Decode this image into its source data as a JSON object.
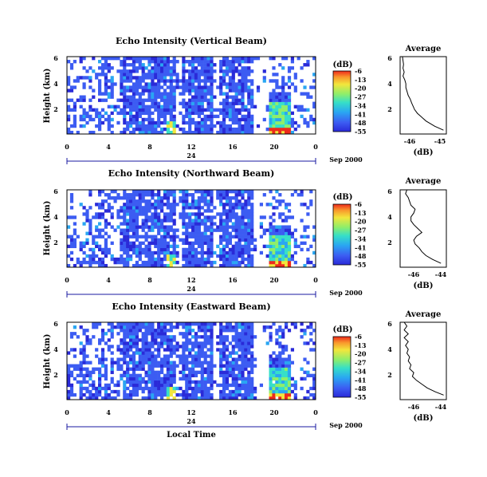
{
  "figure": {
    "xlabel": "Local Time",
    "date_label": "Sep 2000",
    "colorbar_unit": "(dB)",
    "average_title": "Average",
    "average_xlabel": "(dB)"
  },
  "chart_data": [
    {
      "type": "heatmap",
      "title": "Echo Intensity (Vertical Beam)",
      "ylabel": "Height (km)",
      "x_ticks": [
        "0",
        "4",
        "8",
        "12",
        "16",
        "20",
        "0"
      ],
      "date_ticks": [
        "24"
      ],
      "y_ticks": [
        "6",
        "4",
        "2"
      ],
      "xlim": [
        0,
        24
      ],
      "ylim": [
        0,
        6
      ],
      "colorbar": {
        "ticks": [
          -6,
          -13,
          -20,
          -27,
          -34,
          -41,
          -48,
          -55
        ],
        "range": [
          -55,
          -6
        ]
      },
      "profile": {
        "title": "Average",
        "xlabel": "(dB)",
        "x_ticks": [
          "-46",
          "-45"
        ],
        "xlim": [
          -46.3,
          -44.7
        ],
        "ylim": [
          0,
          6
        ],
        "y_ticks": [
          "6",
          "4",
          "2"
        ],
        "points": [
          [
            -46.22,
            6.0
          ],
          [
            -46.2,
            5.7
          ],
          [
            -46.18,
            5.4
          ],
          [
            -46.2,
            5.1
          ],
          [
            -46.16,
            4.8
          ],
          [
            -46.2,
            4.5
          ],
          [
            -46.14,
            4.2
          ],
          [
            -46.1,
            3.9
          ],
          [
            -46.1,
            3.6
          ],
          [
            -46.06,
            3.3
          ],
          [
            -46.02,
            3.0
          ],
          [
            -45.95,
            2.7
          ],
          [
            -45.9,
            2.4
          ],
          [
            -45.84,
            2.1
          ],
          [
            -45.8,
            1.9
          ],
          [
            -45.7,
            1.6
          ],
          [
            -45.6,
            1.4
          ],
          [
            -45.5,
            1.2
          ],
          [
            -45.4,
            1.0
          ],
          [
            -45.25,
            0.8
          ],
          [
            -45.1,
            0.6
          ],
          [
            -44.95,
            0.45
          ],
          [
            -44.8,
            0.3
          ]
        ]
      }
    },
    {
      "type": "heatmap",
      "title": "Echo Intensity (Northward Beam)",
      "ylabel": "Height (km)",
      "x_ticks": [
        "0",
        "4",
        "8",
        "12",
        "16",
        "20",
        "0"
      ],
      "date_ticks": [
        "24"
      ],
      "y_ticks": [
        "6",
        "4",
        "2"
      ],
      "xlim": [
        0,
        24
      ],
      "ylim": [
        0,
        6
      ],
      "colorbar": {
        "ticks": [
          -6,
          -13,
          -20,
          -27,
          -34,
          -41,
          -48,
          -55
        ],
        "range": [
          -55,
          -6
        ]
      },
      "profile": {
        "title": "Average",
        "xlabel": "(dB)",
        "x_ticks": [
          "-46",
          "-44"
        ],
        "xlim": [
          -46.6,
          -43.2
        ],
        "ylim": [
          0,
          6
        ],
        "y_ticks": [
          "6",
          "4",
          "2"
        ],
        "points": [
          [
            -46.1,
            6.0
          ],
          [
            -46.2,
            5.7
          ],
          [
            -46.0,
            5.4
          ],
          [
            -45.9,
            5.1
          ],
          [
            -45.8,
            4.8
          ],
          [
            -45.5,
            4.5
          ],
          [
            -45.6,
            4.2
          ],
          [
            -45.8,
            3.9
          ],
          [
            -45.8,
            3.6
          ],
          [
            -45.6,
            3.3
          ],
          [
            -45.3,
            3.0
          ],
          [
            -45.0,
            2.7
          ],
          [
            -45.4,
            2.4
          ],
          [
            -45.6,
            2.1
          ],
          [
            -45.5,
            1.8
          ],
          [
            -45.2,
            1.5
          ],
          [
            -45.0,
            1.2
          ],
          [
            -44.7,
            0.9
          ],
          [
            -44.2,
            0.6
          ],
          [
            -43.6,
            0.3
          ]
        ]
      }
    },
    {
      "type": "heatmap",
      "title": "Echo Intensity (Eastward Beam)",
      "ylabel": "Height (km)",
      "x_ticks": [
        "0",
        "4",
        "8",
        "12",
        "16",
        "20",
        "0"
      ],
      "date_ticks": [
        "24"
      ],
      "y_ticks": [
        "6",
        "4",
        "2"
      ],
      "xlim": [
        0,
        24
      ],
      "ylim": [
        0,
        6
      ],
      "colorbar": {
        "ticks": [
          -6,
          -13,
          -20,
          -27,
          -34,
          -41,
          -48,
          -55
        ],
        "range": [
          -55,
          -6
        ]
      },
      "profile": {
        "title": "Average",
        "xlabel": "(dB)",
        "x_ticks": [
          "-46",
          "-44"
        ],
        "xlim": [
          -46.6,
          -43.2
        ],
        "ylim": [
          0,
          6
        ],
        "y_ticks": [
          "6",
          "4",
          "2"
        ],
        "points": [
          [
            -46.3,
            6.0
          ],
          [
            -46.1,
            5.7
          ],
          [
            -46.3,
            5.4
          ],
          [
            -46.0,
            5.1
          ],
          [
            -46.3,
            4.8
          ],
          [
            -46.0,
            4.5
          ],
          [
            -46.2,
            4.2
          ],
          [
            -46.0,
            3.9
          ],
          [
            -46.1,
            3.6
          ],
          [
            -45.9,
            3.3
          ],
          [
            -46.0,
            3.0
          ],
          [
            -45.8,
            2.7
          ],
          [
            -45.9,
            2.4
          ],
          [
            -45.6,
            2.1
          ],
          [
            -45.7,
            1.8
          ],
          [
            -45.4,
            1.5
          ],
          [
            -45.0,
            1.2
          ],
          [
            -44.6,
            0.9
          ],
          [
            -44.0,
            0.6
          ],
          [
            -43.4,
            0.35
          ]
        ]
      }
    }
  ]
}
